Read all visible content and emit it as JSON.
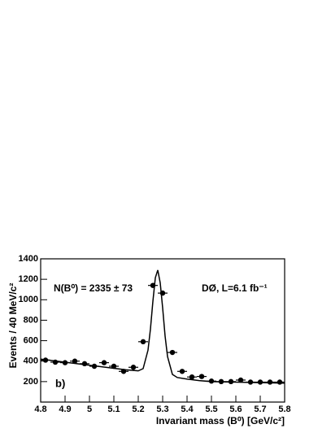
{
  "chart_data": {
    "type": "scatter",
    "xlabel": "Invariant mass (B⁰) [GeV/c²]",
    "ylabel": "Events / 40 MeV/c²",
    "annotations": [
      "N(B⁰) = 2335 ± 73",
      "DØ, L=6.1 fb⁻¹",
      "b)"
    ],
    "xlim": [
      4.8,
      5.8
    ],
    "xticks": [
      4.8,
      4.9,
      5,
      5.1,
      5.2,
      5.3,
      5.4,
      5.5,
      5.6,
      5.7,
      5.8
    ],
    "ylim": [
      0,
      1400
    ],
    "yticks": [
      200,
      400,
      600,
      800,
      1000,
      1200,
      1400
    ],
    "color": "#000000",
    "points": {
      "x": [
        4.82,
        4.86,
        4.9,
        4.94,
        4.98,
        5.02,
        5.06,
        5.1,
        5.14,
        5.18,
        5.22,
        5.26,
        5.3,
        5.34,
        5.38,
        5.42,
        5.46,
        5.5,
        5.54,
        5.58,
        5.62,
        5.66,
        5.7,
        5.74,
        5.78
      ],
      "y": [
        410,
        390,
        385,
        400,
        375,
        350,
        385,
        350,
        300,
        340,
        590,
        1140,
        1065,
        485,
        300,
        245,
        250,
        205,
        200,
        200,
        215,
        195,
        195,
        195,
        195
      ]
    },
    "fit": {
      "x": [
        4.8,
        4.9,
        5.0,
        5.1,
        5.15,
        5.2,
        5.22,
        5.24,
        5.25,
        5.26,
        5.27,
        5.28,
        5.29,
        5.3,
        5.31,
        5.32,
        5.34,
        5.36,
        5.4,
        5.45,
        5.5,
        5.6,
        5.7,
        5.8
      ],
      "y": [
        420,
        390,
        360,
        330,
        315,
        305,
        327,
        508,
        715,
        985,
        1215,
        1290,
        1165,
        920,
        645,
        445,
        270,
        240,
        225,
        210,
        200,
        195,
        190,
        185
      ]
    }
  }
}
